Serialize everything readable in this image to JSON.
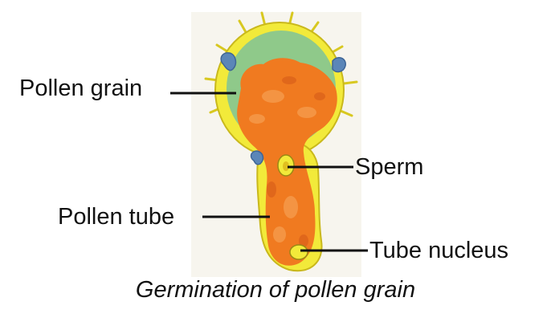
{
  "labels": {
    "pollen_grain": "Pollen grain",
    "sperm": "Sperm",
    "pollen_tube": "Pollen tube",
    "tube_nucleus": "Tube nucleus"
  },
  "caption": "Germination of pollen grain",
  "colors": {
    "wall_yellow": "#f2ea3a",
    "cytoplasm_green": "#8fc98a",
    "tube_orange": "#f07a20",
    "pore_blue": "#5b86b8",
    "leader_line": "#111111"
  }
}
